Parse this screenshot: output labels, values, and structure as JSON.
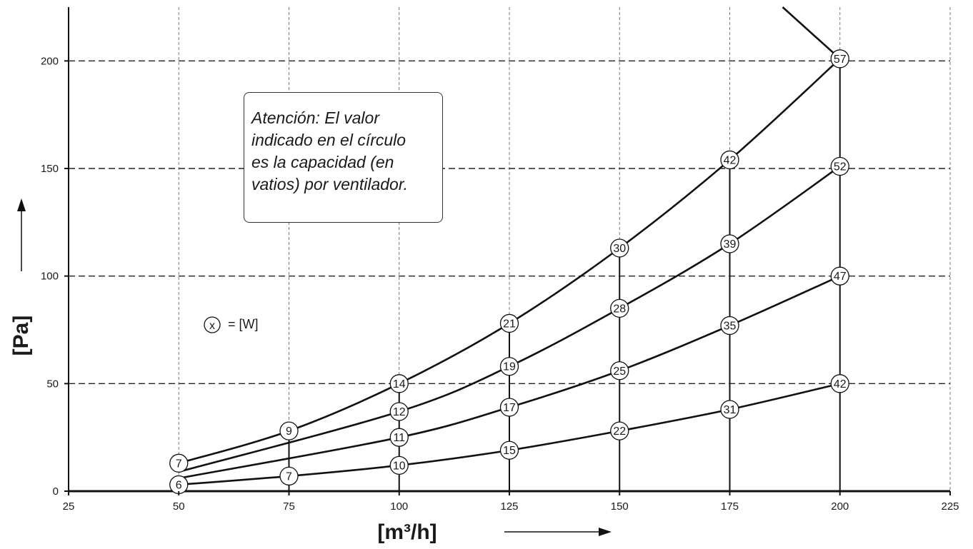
{
  "chart_data": {
    "type": "line",
    "xlabel": "[m³/h]",
    "ylabel": "[Pa]",
    "xlim": [
      25,
      225
    ],
    "ylim": [
      0,
      225
    ],
    "x_ticks": [
      "25",
      "50",
      "75",
      "100",
      "125",
      "150",
      "175",
      "200",
      "225"
    ],
    "y_ticks": [
      "0",
      "50",
      "100",
      "150",
      "200"
    ],
    "grid": true,
    "verticals": [
      75,
      100,
      125,
      150,
      175,
      200
    ],
    "series": [
      {
        "x": [
          50,
          75,
          100,
          125,
          150,
          175,
          200
        ],
        "y": [
          13,
          28,
          50,
          78,
          113,
          154,
          201
        ],
        "labels": [
          "7",
          "9",
          "14",
          "21",
          "30",
          "42",
          "57"
        ]
      },
      {
        "x": [
          50,
          100,
          125,
          150,
          175,
          200
        ],
        "y": [
          9,
          37,
          58,
          85,
          115,
          151
        ],
        "labels": [
          "",
          "12",
          "19",
          "28",
          "39",
          "52"
        ]
      },
      {
        "x": [
          50,
          100,
          125,
          150,
          175,
          200
        ],
        "y": [
          6,
          25,
          39,
          56,
          77,
          100
        ],
        "labels": [
          "",
          "11",
          "17",
          "25",
          "35",
          "47"
        ]
      },
      {
        "x": [
          50,
          75,
          100,
          125,
          150,
          175,
          200
        ],
        "y": [
          3,
          7,
          12,
          19,
          28,
          38,
          50
        ],
        "labels": [
          "6",
          "7",
          "10",
          "15",
          "22",
          "31",
          "42"
        ]
      }
    ],
    "extra_line": {
      "x": [
        187,
        200
      ],
      "y": [
        225,
        201
      ]
    },
    "note": "Atención: El valor indicado en el círculo es la capacidad (en vatios) por ventilador.",
    "note_lines": [
      "Atención: El valor",
      "indicado en el círculo",
      "es la capacidad (en",
      "vatios) por ventilador."
    ],
    "legend_symbol": "x",
    "legend_text": "= [W]"
  }
}
